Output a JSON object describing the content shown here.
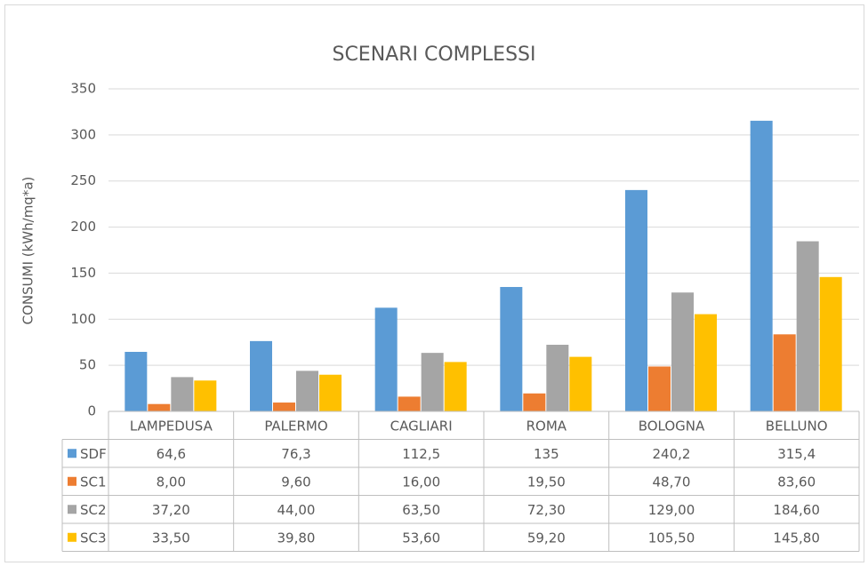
{
  "chart_data": {
    "type": "bar",
    "title": "SCENARI COMPLESSI",
    "y_label": "CONSUMI (kWh/mq*a)",
    "categories": [
      "LAMPEDUSA",
      "PALERMO",
      "CAGLIARI",
      "ROMA",
      "BOLOGNA",
      "BELLUNO"
    ],
    "series": [
      {
        "name": "SDF",
        "color": "#5b9bd5",
        "values": [
          64.6,
          76.3,
          112.5,
          135,
          240.2,
          315.4
        ],
        "value_labels": [
          "64,6",
          "76,3",
          "112,5",
          "135",
          "240,2",
          "315,4"
        ]
      },
      {
        "name": "SC1",
        "color": "#ed7d31",
        "values": [
          8,
          9.6,
          16,
          19.5,
          48.7,
          83.6
        ],
        "value_labels": [
          "8,00",
          "9,60",
          "16,00",
          "19,50",
          "48,70",
          "83,60"
        ]
      },
      {
        "name": "SC2",
        "color": "#a5a5a5",
        "values": [
          37.2,
          44,
          63.5,
          72.3,
          129,
          184.6
        ],
        "value_labels": [
          "37,20",
          "44,00",
          "63,50",
          "72,30",
          "129,00",
          "184,60"
        ]
      },
      {
        "name": "SC3",
        "color": "#ffc000",
        "values": [
          33.5,
          39.8,
          53.6,
          59.2,
          105.5,
          145.8
        ],
        "value_labels": [
          "33,50",
          "39,80",
          "53,60",
          "59,20",
          "105,50",
          "145,80"
        ]
      }
    ],
    "ylim": [
      0,
      350
    ],
    "yticks": [
      0,
      50,
      100,
      150,
      200,
      250,
      300,
      350
    ],
    "grid": true
  }
}
